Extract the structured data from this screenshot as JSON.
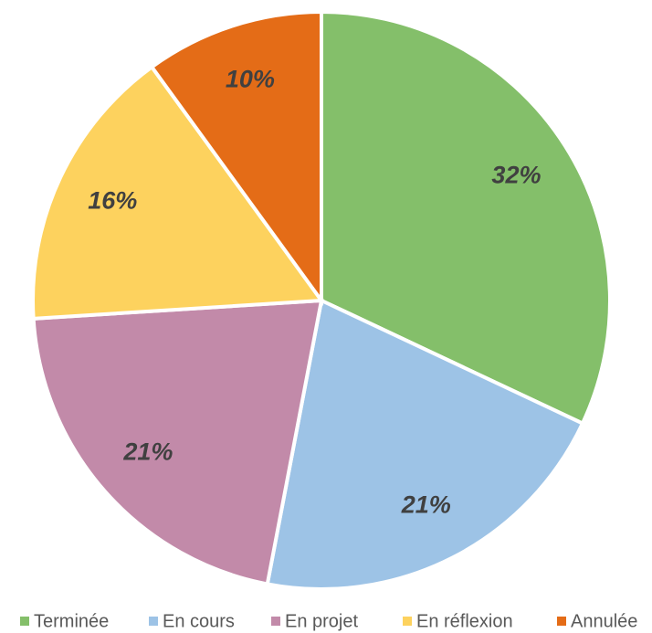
{
  "chart_data": {
    "type": "pie",
    "categories": [
      "Terminée",
      "En cours",
      "En projet",
      "En réflexion",
      "Annulée"
    ],
    "values": [
      32,
      21,
      21,
      16,
      10
    ],
    "value_labels": [
      "32%",
      "21%",
      "21%",
      "16%",
      "10%"
    ],
    "colors": [
      "#84bf6a",
      "#9dc3e6",
      "#c28aa9",
      "#fdd25e",
      "#e46c17"
    ]
  }
}
